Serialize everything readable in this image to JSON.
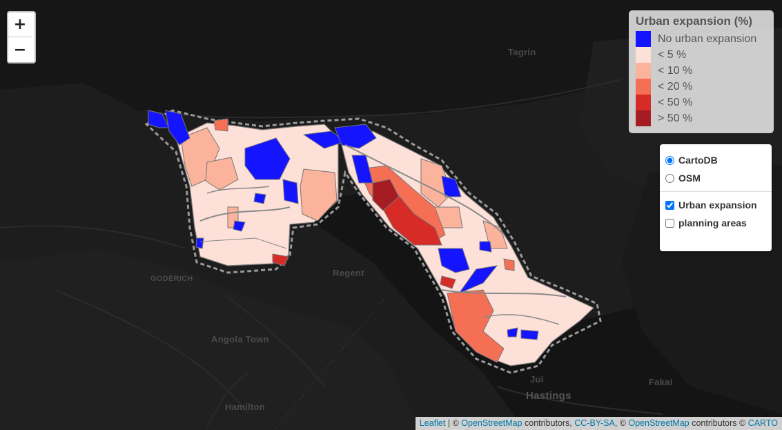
{
  "zoom": {
    "in_label": "+",
    "out_label": "−"
  },
  "legend": {
    "title": "Urban expansion (%)",
    "items": [
      {
        "label": "No urban expansion",
        "color": "#1414ff"
      },
      {
        "label": "< 5 %",
        "color": "#fde0d8"
      },
      {
        "label": "< 10 %",
        "color": "#fbb39b"
      },
      {
        "label": "< 20 %",
        "color": "#f56f55"
      },
      {
        "label": "< 50 %",
        "color": "#d62b27"
      },
      {
        "label": "> 50 %",
        "color": "#a51d23"
      }
    ]
  },
  "layers": {
    "base": [
      {
        "label": "CartoDB",
        "checked": true
      },
      {
        "label": "OSM",
        "checked": false
      }
    ],
    "overlays": [
      {
        "label": "Urban expansion",
        "checked": true
      },
      {
        "label": "planning areas",
        "checked": false
      }
    ]
  },
  "places": {
    "tagrin": "Tagrin",
    "goderich": "GODERICH",
    "regent": "Regent",
    "angola_town": "Angola Town",
    "hamilton": "Hamilton",
    "jui": "Jui",
    "hastings": "Hastings",
    "fakai": "Fakai"
  },
  "attribution": {
    "leaflet": "Leaflet",
    "sep1": " | © ",
    "osm1": "OpenStreetMap",
    "text1": " contributors, ",
    "license": "CC-BY-SA",
    "text2": ", © ",
    "osm2": "OpenStreetMap",
    "text3": " contributors © ",
    "carto": "CARTO"
  }
}
